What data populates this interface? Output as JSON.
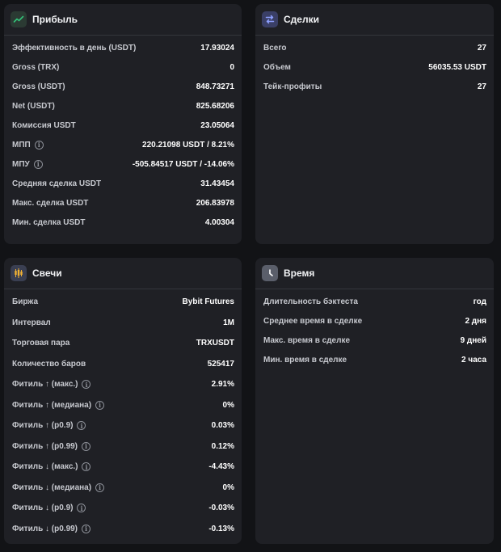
{
  "profit": {
    "title": "Прибыль",
    "icon": "chart-line-up-icon",
    "rows": [
      {
        "label": "Эффективность в день (USDT)",
        "value": "17.93024"
      },
      {
        "label": "Gross (TRX)",
        "value": "0"
      },
      {
        "label": "Gross (USDT)",
        "value": "848.73271"
      },
      {
        "label": "Net (USDT)",
        "value": "825.68206"
      },
      {
        "label": "Комиссия USDT",
        "value": "23.05064"
      },
      {
        "label": "МПП",
        "value": "220.21098 USDT / 8.21%",
        "info": true
      },
      {
        "label": "МПУ",
        "value": "-505.84517 USDT / -14.06%",
        "info": true
      },
      {
        "label": "Средняя сделка USDT",
        "value": "31.43454"
      },
      {
        "label": "Макс. сделка USDT",
        "value": "206.83978"
      },
      {
        "label": "Мин. сделка USDT",
        "value": "4.00304"
      }
    ]
  },
  "deals": {
    "title": "Сделки",
    "icon": "swap-arrows-icon",
    "rows": [
      {
        "label": "Всего",
        "value": "27"
      },
      {
        "label": "Объем",
        "value": "56035.53 USDT"
      },
      {
        "label": "Тейк-профиты",
        "value": "27"
      }
    ]
  },
  "candles": {
    "title": "Свечи",
    "icon": "candlestick-icon",
    "rows": [
      {
        "label": "Биржа",
        "value": "Bybit Futures"
      },
      {
        "label": "Интервал",
        "value": "1M"
      },
      {
        "label": "Торговая пара",
        "value": "TRXUSDT"
      },
      {
        "label": "Количество баров",
        "value": "525417"
      },
      {
        "label": "Фитиль ↑ (макс.)",
        "value": "2.91%",
        "info": true
      },
      {
        "label": "Фитиль ↑ (медиана)",
        "value": "0%",
        "info": true
      },
      {
        "label": "Фитиль ↑ (p0.9)",
        "value": "0.03%",
        "info": true
      },
      {
        "label": "Фитиль ↑ (p0.99)",
        "value": "0.12%",
        "info": true
      },
      {
        "label": "Фитиль ↓ (макс.)",
        "value": "-4.43%",
        "info": true
      },
      {
        "label": "Фитиль ↓ (медиана)",
        "value": "0%",
        "info": true
      },
      {
        "label": "Фитиль ↓ (p0.9)",
        "value": "-0.03%",
        "info": true
      },
      {
        "label": "Фитиль ↓ (p0.99)",
        "value": "-0.13%",
        "info": true
      }
    ]
  },
  "time": {
    "title": "Время",
    "icon": "clock-icon",
    "rows": [
      {
        "label": "Длительность бэктеста",
        "value": "год"
      },
      {
        "label": "Среднее время в сделке",
        "value": "2 дня"
      },
      {
        "label": "Макс. время в сделке",
        "value": "9 дней"
      },
      {
        "label": "Мин. время в сделке",
        "value": "2 часа"
      }
    ]
  },
  "colors": {
    "background": "#121316",
    "card": "#1f2025",
    "profit_icon_bg": "#2b3a33",
    "profit_icon": "#33c279",
    "deals_icon_bg": "#3a3f66",
    "deals_icon": "#8ea0ff",
    "candles_icon_bg": "#3a3f52",
    "candles_icon": "#f2b233",
    "time_icon_bg": "#5a5e6a"
  }
}
